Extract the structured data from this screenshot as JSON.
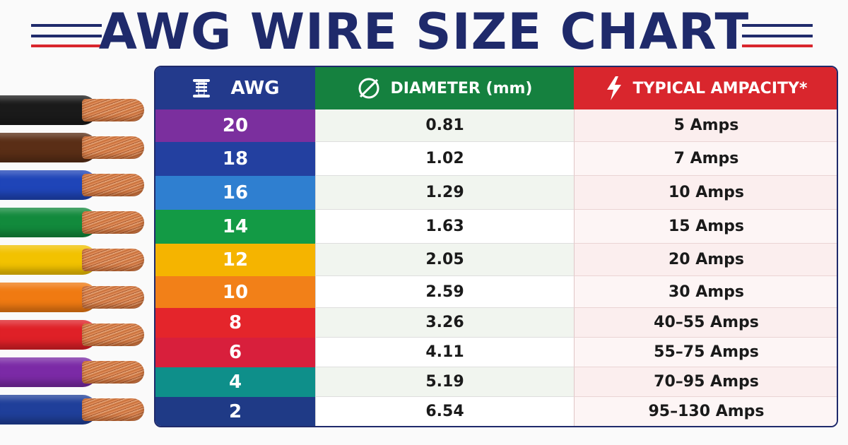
{
  "title": "AWG WIRE SIZE CHART",
  "colors": {
    "title": "#1f2a6b",
    "deco_blue": "#1f2a6b",
    "deco_red": "#d9262d",
    "header_awg": "#233a8c",
    "header_diameter": "#15813f",
    "header_ampacity": "#d9262d"
  },
  "headers": {
    "awg": {
      "label": "AWG",
      "icon": "wire-spool-icon"
    },
    "diameter": {
      "label": "DIAMETER (mm)",
      "icon": "diameter-icon"
    },
    "ampacity": {
      "label": "TYPICAL AMPACITY*",
      "icon": "lightning-bolt-icon"
    }
  },
  "chart_data": {
    "type": "table",
    "title": "AWG WIRE SIZE CHART",
    "columns": [
      "AWG",
      "DIAMETER (mm)",
      "TYPICAL AMPACITY*"
    ],
    "rows": [
      {
        "awg": "20",
        "diameter": "0.81",
        "ampacity": "5 Amps",
        "color": "#7b2f9e"
      },
      {
        "awg": "18",
        "diameter": "1.02",
        "ampacity": "7 Amps",
        "color": "#2340a0"
      },
      {
        "awg": "16",
        "diameter": "1.29",
        "ampacity": "10 Amps",
        "color": "#2f7fd0"
      },
      {
        "awg": "14",
        "diameter": "1.63",
        "ampacity": "15 Amps",
        "color": "#139a45"
      },
      {
        "awg": "12",
        "diameter": "2.05",
        "ampacity": "20 Amps",
        "color": "#f5b400"
      },
      {
        "awg": "10",
        "diameter": "2.59",
        "ampacity": "30 Amps",
        "color": "#f28018"
      },
      {
        "awg": "8",
        "diameter": "3.26",
        "ampacity": "40–55 Amps",
        "color": "#e4252b"
      },
      {
        "awg": "6",
        "diameter": "4.11",
        "ampacity": "55–75 Amps",
        "color": "#d81f3c"
      },
      {
        "awg": "4",
        "diameter": "5.19",
        "ampacity": "70–95 Amps",
        "color": "#0e8f8a"
      },
      {
        "awg": "2",
        "diameter": "6.54",
        "ampacity": "95–130 Amps",
        "color": "#1f3a86"
      }
    ]
  },
  "wires": [
    {
      "insulation": "#1a1a1a"
    },
    {
      "insulation": "#5a2e16"
    },
    {
      "insulation": "#1f45b8"
    },
    {
      "insulation": "#128a3c"
    },
    {
      "insulation": "#f2c200"
    },
    {
      "insulation": "#f07a12"
    },
    {
      "insulation": "#df2027"
    },
    {
      "insulation": "#7b2aa6"
    },
    {
      "insulation": "#1f3f9a"
    }
  ]
}
